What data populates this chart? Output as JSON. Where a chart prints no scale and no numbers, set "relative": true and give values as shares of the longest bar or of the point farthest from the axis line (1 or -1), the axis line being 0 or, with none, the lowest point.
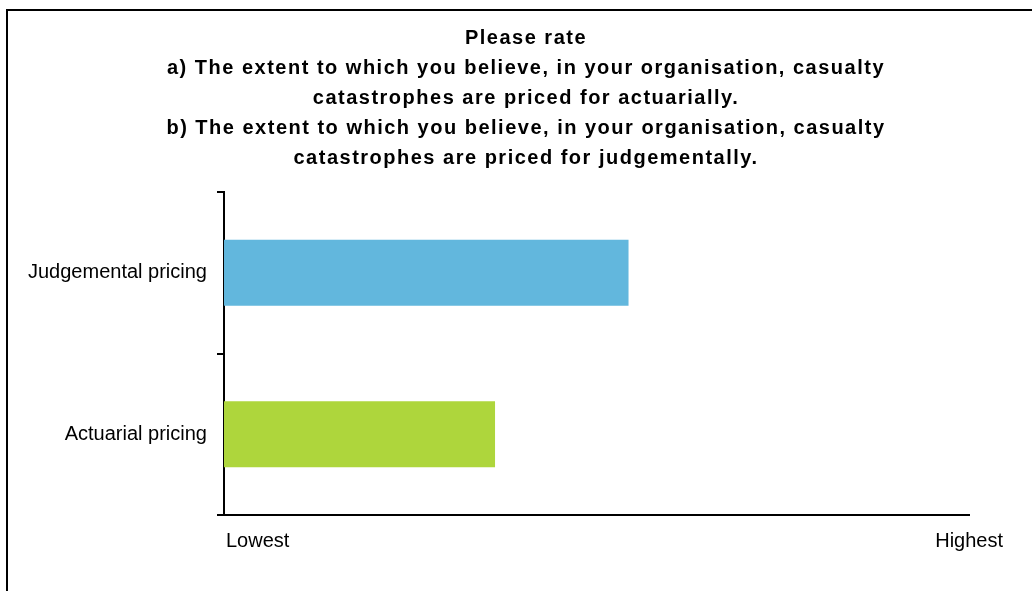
{
  "chart_data": {
    "type": "bar",
    "orientation": "horizontal",
    "relative": true,
    "title": "Please rate\na) The extent to which you believe, in your organisation, casualty catastrophes are priced for actuarially.\nb) The extent to which you believe, in your organisation, casualty catastrophes are priced for judgementally.",
    "categories": [
      "Judgemental pricing",
      "Actuarial pricing"
    ],
    "values": [
      1,
      0.67
    ],
    "colors": [
      "#62b7dd",
      "#aed63c"
    ],
    "annotations": [
      "Lowest",
      "Highest"
    ]
  }
}
